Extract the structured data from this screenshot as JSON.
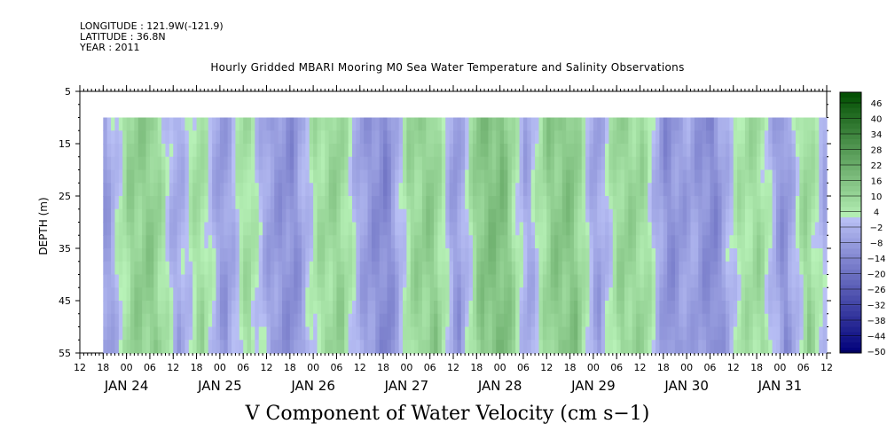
{
  "header": {
    "longitude": "LONGITUDE : 121.9W(-121.9)",
    "latitude": "LATITUDE : 36.8N",
    "year": "YEAR : 2011"
  },
  "chart_data": {
    "type": "heatmap",
    "title": "Hourly Gridded MBARI Mooring M0 Sea Water Temperature and Salinity Observations",
    "variable_label": "V Component of Water Velocity (cm s−1)",
    "ylabel": "DEPTH (m)",
    "y_range": [
      5,
      55
    ],
    "y_inverted": true,
    "y_ticks": [
      5,
      15,
      25,
      35,
      45,
      55
    ],
    "x_range": [
      "2011-01-23T12:00",
      "2011-01-31T12:00"
    ],
    "x_hour_labels": [
      "12",
      "18",
      "00",
      "06",
      "12",
      "18",
      "00",
      "06",
      "12",
      "18",
      "00",
      "06",
      "12",
      "18",
      "00",
      "06",
      "12",
      "18",
      "00",
      "06",
      "12",
      "18",
      "00",
      "06",
      "12",
      "18",
      "00",
      "06",
      "12",
      "18",
      "00",
      "06",
      "12"
    ],
    "x_day_labels": [
      "JAN 24",
      "JAN 25",
      "JAN 26",
      "JAN 27",
      "JAN 28",
      "JAN 29",
      "JAN 30",
      "JAN 31"
    ],
    "data_time_range": [
      "2011-01-23T18:00",
      "2011-01-31T12:00"
    ],
    "data_depth_range": [
      10,
      55
    ],
    "colorbar": {
      "ticks": [
        "46",
        "40",
        "34",
        "28",
        "22",
        "16",
        "10",
        "4",
        "−2",
        "−8",
        "−14",
        "−20",
        "−26",
        "−32",
        "−38",
        "−44",
        "−50"
      ],
      "range": [
        -50,
        49
      ],
      "low_color": "#00007a",
      "mid_low_color": "#b9c0f5",
      "mid_high_color": "#b8f2b8",
      "high_color": "#004d00"
    },
    "v_profile_time": [
      "2011-01-23T18:00",
      "2011-01-24T00:00",
      "2011-01-24T06:00",
      "2011-01-24T12:00",
      "2011-01-24T18:00",
      "2011-01-25T00:00",
      "2011-01-25T06:00",
      "2011-01-25T12:00",
      "2011-01-25T18:00",
      "2011-01-26T00:00",
      "2011-01-26T06:00",
      "2011-01-26T12:00",
      "2011-01-26T18:00",
      "2011-01-27T00:00",
      "2011-01-27T06:00",
      "2011-01-27T12:00",
      "2011-01-27T18:00",
      "2011-01-28T00:00",
      "2011-01-28T06:00",
      "2011-01-28T12:00",
      "2011-01-28T18:00",
      "2011-01-29T00:00",
      "2011-01-29T06:00",
      "2011-01-29T12:00",
      "2011-01-29T18:00",
      "2011-01-30T00:00",
      "2011-01-30T06:00",
      "2011-01-30T12:00",
      "2011-01-30T18:00",
      "2011-01-31T00:00",
      "2011-01-31T06:00",
      "2011-01-31T12:00"
    ],
    "v_mean_cm_s": [
      -8,
      10,
      12,
      -6,
      8,
      -10,
      8,
      -8,
      -12,
      6,
      10,
      -8,
      -14,
      8,
      12,
      -10,
      14,
      16,
      -6,
      12,
      14,
      -8,
      10,
      8,
      -12,
      -6,
      -14,
      4,
      8,
      -12,
      10,
      -8
    ]
  }
}
